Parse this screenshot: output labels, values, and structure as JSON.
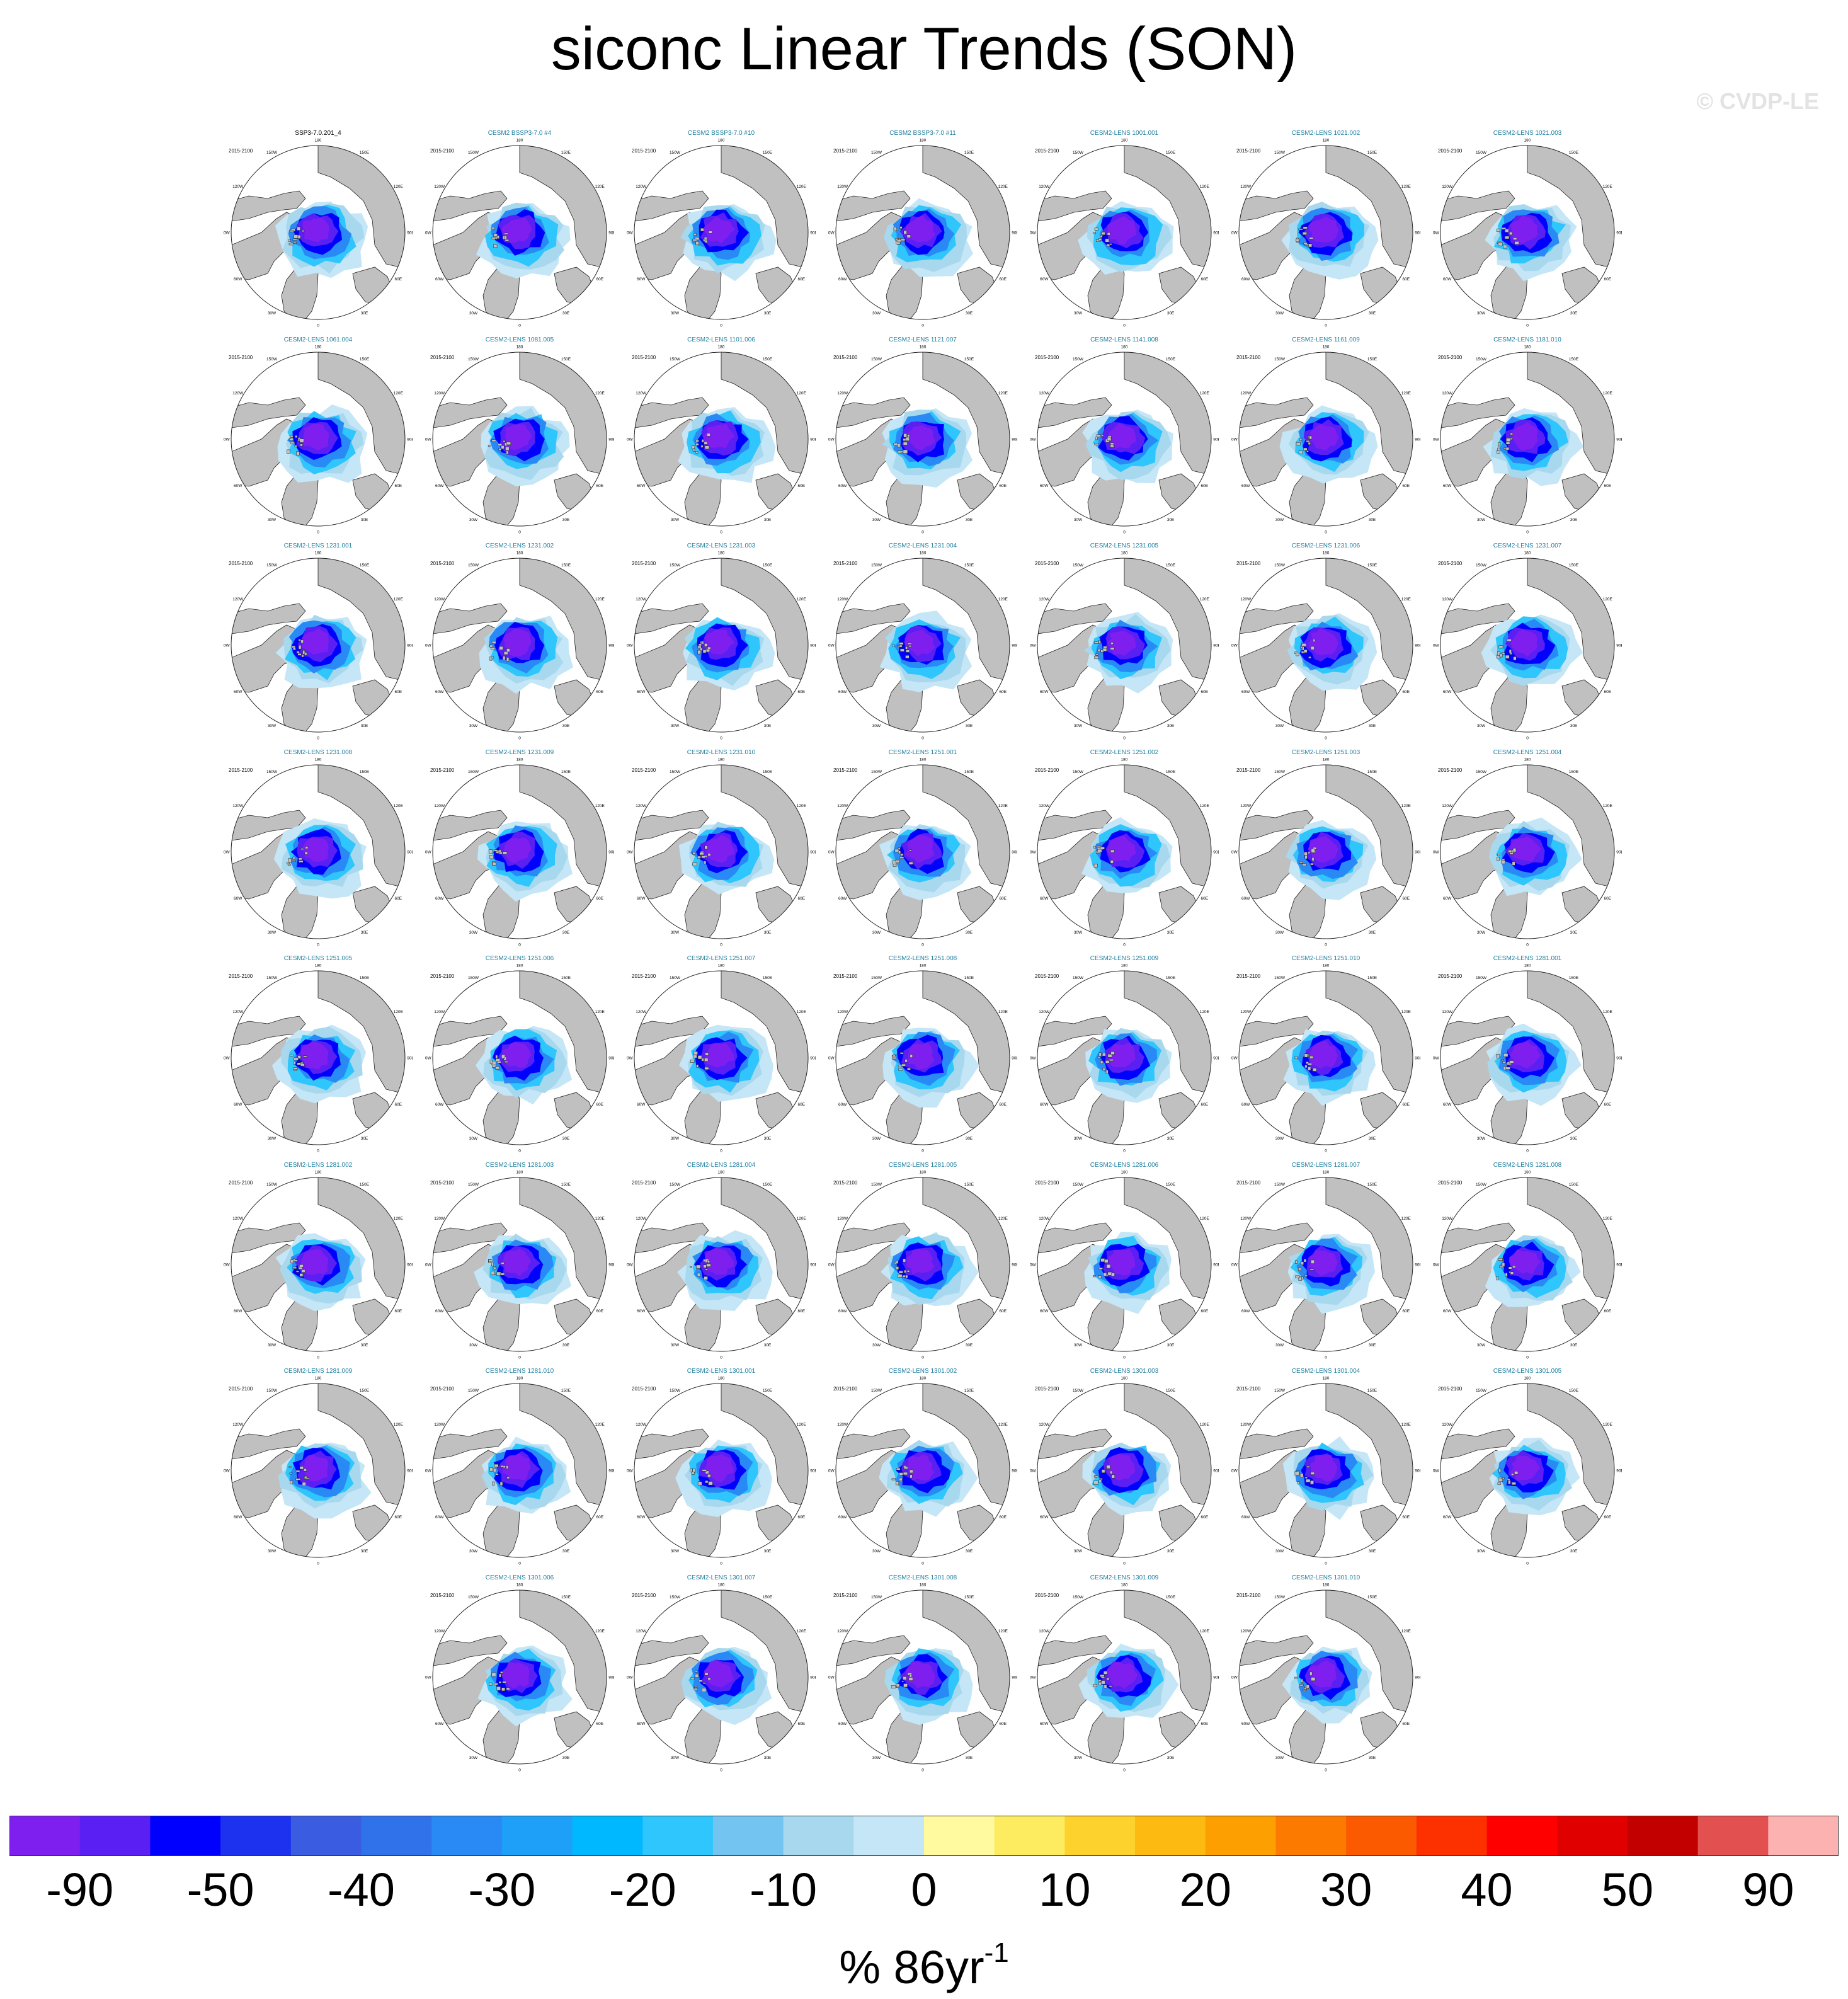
{
  "title": "siconc Linear Trends (SON)",
  "watermark": "© CVDP-LE",
  "chart_data": {
    "type": "map-panels",
    "projection": "north-polar-stereographic",
    "period": "2015-2100",
    "longitude_labels": [
      "180",
      "150E",
      "120E",
      "90E",
      "60E",
      "30E",
      "0",
      "30W",
      "60W",
      "90W",
      "120W",
      "150W"
    ],
    "panels": [
      "SSP3-7.0.201_4",
      "CESM2 BSSP3-7.0 #4",
      "CESM2 BSSP3-7.0 #10",
      "CESM2 BSSP3-7.0 #11",
      "CESM2-LENS 1001.001",
      "CESM2-LENS 1021.002",
      "CESM2-LENS 1021.003",
      "CESM2-LENS 1061.004",
      "CESM2-LENS 1081.005",
      "CESM2-LENS 1101.006",
      "CESM2-LENS 1121.007",
      "CESM2-LENS 1141.008",
      "CESM2-LENS 1161.009",
      "CESM2-LENS 1181.010",
      "CESM2-LENS 1231.001",
      "CESM2-LENS 1231.002",
      "CESM2-LENS 1231.003",
      "CESM2-LENS 1231.004",
      "CESM2-LENS 1231.005",
      "CESM2-LENS 1231.006",
      "CESM2-LENS 1231.007",
      "CESM2-LENS 1231.008",
      "CESM2-LENS 1231.009",
      "CESM2-LENS 1231.010",
      "CESM2-LENS 1251.001",
      "CESM2-LENS 1251.002",
      "CESM2-LENS 1251.003",
      "CESM2-LENS 1251.004",
      "CESM2-LENS 1251.005",
      "CESM2-LENS 1251.006",
      "CESM2-LENS 1251.007",
      "CESM2-LENS 1251.008",
      "CESM2-LENS 1251.009",
      "CESM2-LENS 1251.010",
      "CESM2-LENS 1281.001",
      "CESM2-LENS 1281.002",
      "CESM2-LENS 1281.003",
      "CESM2-LENS 1281.004",
      "CESM2-LENS 1281.005",
      "CESM2-LENS 1281.006",
      "CESM2-LENS 1281.007",
      "CESM2-LENS 1281.008",
      "CESM2-LENS 1281.009",
      "CESM2-LENS 1281.010",
      "CESM2-LENS 1301.001",
      "CESM2-LENS 1301.002",
      "CESM2-LENS 1301.003",
      "CESM2-LENS 1301.004",
      "CESM2-LENS 1301.005",
      "CESM2-LENS 1301.006",
      "CESM2-LENS 1301.007",
      "CESM2-LENS 1301.008",
      "CESM2-LENS 1301.009",
      "CESM2-LENS 1301.010"
    ],
    "colorbar": {
      "colors": [
        "#7f1fef",
        "#5a1ff2",
        "#0000ff",
        "#1c32ef",
        "#3a5ce0",
        "#2f72e9",
        "#2a8af5",
        "#1ea0f8",
        "#00b8ff",
        "#2ec6fc",
        "#73c4f0",
        "#a8d8ee",
        "#c4e6f6",
        "#fffaa0",
        "#fdeb60",
        "#fdd22d",
        "#fdba10",
        "#fd9f00",
        "#fd7a00",
        "#fc5a00",
        "#fd3000",
        "#ff0000",
        "#e10000",
        "#c30000",
        "#e35050",
        "#fdb2b2"
      ],
      "tick_labels": [
        "-90",
        "-50",
        "-40",
        "-30",
        "-20",
        "-10",
        "0",
        "10",
        "20",
        "30",
        "40",
        "50",
        "90"
      ],
      "units": "% 86yr",
      "units_exponent": "-1",
      "land_color": "#c0c0c0"
    }
  }
}
